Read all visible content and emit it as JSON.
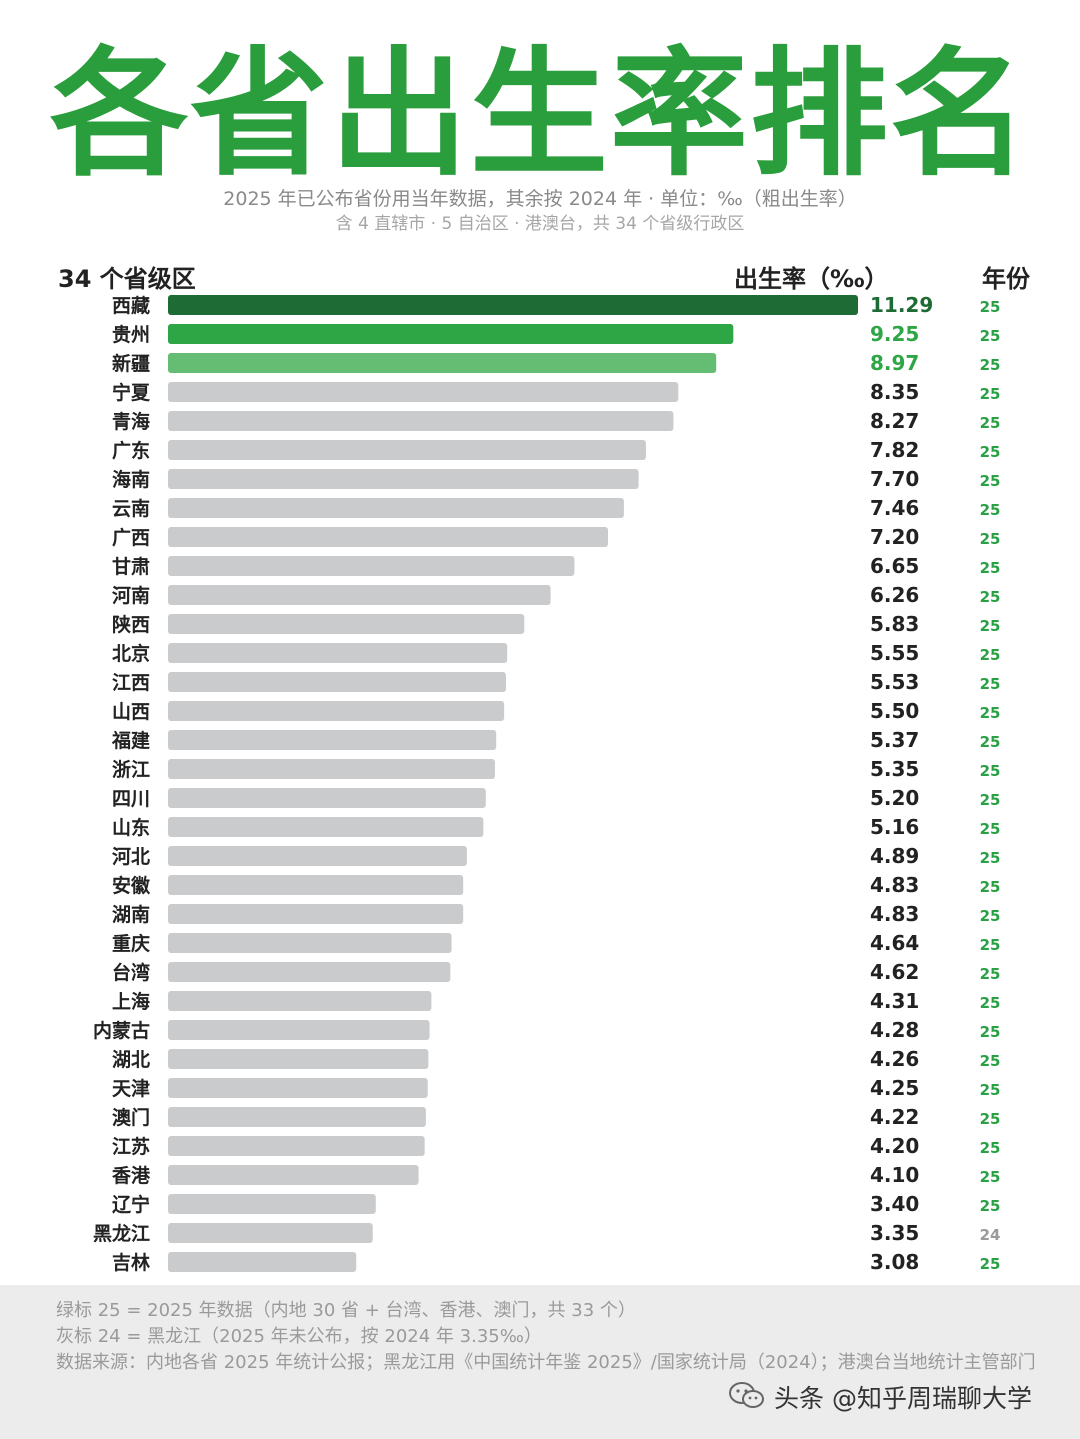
{
  "title": "各省出生率排名",
  "subtitle": "2025 年已公布省份用当年数据，其余按 2024 年 · 单位：‰（粗出生率）",
  "subtitle2": "含 4 直辖市 · 5 自治区 · 港澳台，共 34 个省级行政区",
  "header": {
    "region": "34 个省级区",
    "rate": "出生率（‰）",
    "year": "年份"
  },
  "colors": {
    "top1": "#1f6b35",
    "top2": "#2fa645",
    "top3": "#64bd72",
    "rest": "#c9cbcd",
    "year_green": "#2aa044",
    "year_gray": "#9a9a9a"
  },
  "chart_data": {
    "type": "bar",
    "orientation": "horizontal",
    "categories": [
      "西藏",
      "贵州",
      "新疆",
      "宁夏",
      "青海",
      "广东",
      "海南",
      "云南",
      "广西",
      "甘肃",
      "河南",
      "陕西",
      "北京",
      "江西",
      "山西",
      "福建",
      "浙江",
      "四川",
      "山东",
      "河北",
      "安徽",
      "湖南",
      "重庆",
      "台湾",
      "上海",
      "内蒙古",
      "湖北",
      "天津",
      "澳门",
      "江苏",
      "香港",
      "辽宁",
      "黑龙江",
      "吉林"
    ],
    "values": [
      11.29,
      9.25,
      8.97,
      8.35,
      8.27,
      7.82,
      7.7,
      7.46,
      7.2,
      6.65,
      6.26,
      5.83,
      5.55,
      5.53,
      5.5,
      5.37,
      5.35,
      5.2,
      5.16,
      4.89,
      4.83,
      4.83,
      4.64,
      4.62,
      4.31,
      4.28,
      4.26,
      4.25,
      4.22,
      4.2,
      4.1,
      3.4,
      3.35,
      3.08
    ],
    "value_labels": [
      "11.29",
      "9.25",
      "8.97",
      "8.35",
      "8.27",
      "7.82",
      "7.70",
      "7.46",
      "7.20",
      "6.65",
      "6.26",
      "5.83",
      "5.55",
      "5.53",
      "5.50",
      "5.37",
      "5.35",
      "5.20",
      "5.16",
      "4.89",
      "4.83",
      "4.83",
      "4.64",
      "4.62",
      "4.31",
      "4.28",
      "4.26",
      "4.25",
      "4.22",
      "4.20",
      "4.10",
      "3.40",
      "3.35",
      "3.08"
    ],
    "years": [
      "25",
      "25",
      "25",
      "25",
      "25",
      "25",
      "25",
      "25",
      "25",
      "25",
      "25",
      "25",
      "25",
      "25",
      "25",
      "25",
      "25",
      "25",
      "25",
      "25",
      "25",
      "25",
      "25",
      "25",
      "25",
      "25",
      "25",
      "25",
      "25",
      "25",
      "25",
      "25",
      "24",
      "25"
    ],
    "xlim": [
      0,
      11.29
    ]
  },
  "footer": {
    "note1": "绿标 25 = 2025 年数据（内地 30 省 + 台湾、香港、澳门，共 33 个）",
    "note2": "灰标 24 = 黑龙江（2025 年未公布，按 2024 年 3.35‰）",
    "note3": "数据来源：内地各省 2025 年统计公报；黑龙江用《中国统计年鉴 2025》/国家统计局（2024）；港澳台当地统计主管部门",
    "watermark": "头条 @知乎周瑞聊大学"
  }
}
